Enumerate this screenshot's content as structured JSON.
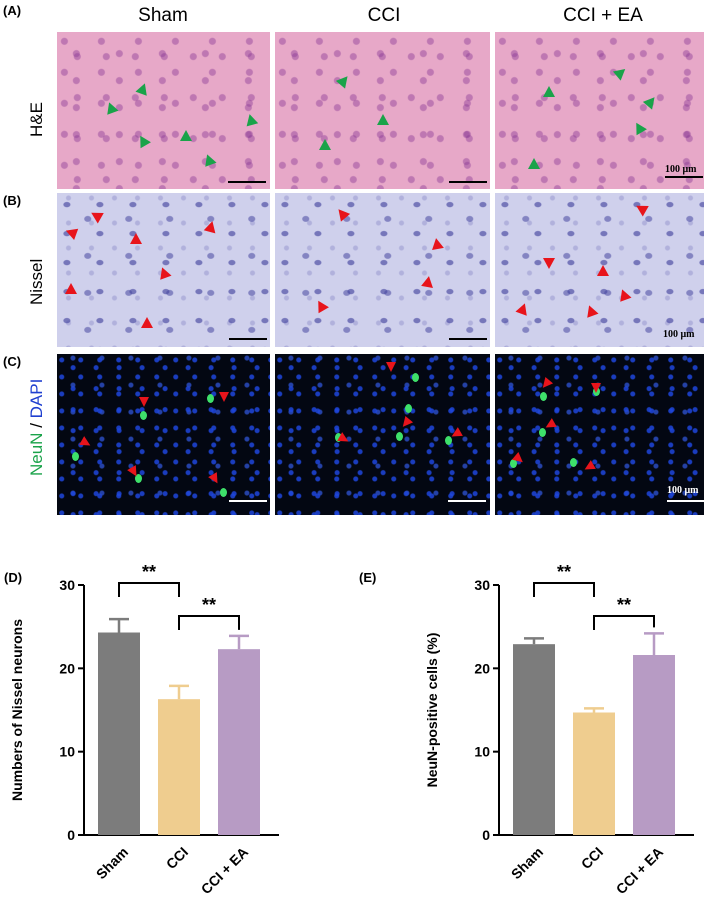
{
  "figure": {
    "columns": [
      "Sham",
      "CCI",
      "CCI + EA"
    ],
    "panels": {
      "A": {
        "letter": "(A)",
        "row_label": "H&E",
        "scale_text": "100 μm"
      },
      "B": {
        "letter": "(B)",
        "row_label": "Nissel",
        "scale_text": "100 μm"
      },
      "C": {
        "letter": "(C)",
        "row_label_part1": "NeuN",
        "row_label_sep": " / ",
        "row_label_part2": "DAPI",
        "scale_text": "100 μm"
      }
    },
    "colors": {
      "green_arrow": "#1aa34a",
      "red_arrow": "#e8141b",
      "neun_green": "#1aa34a",
      "dapi_blue": "#1f3fcf",
      "bar_sham": "#7c7c7c",
      "bar_cci": "#efcd8f",
      "bar_ccea": "#b79bc4"
    }
  },
  "chart_data": [
    {
      "panel_letter": "(D)",
      "type": "bar",
      "categories": [
        "Sham",
        "CCI",
        "CCI + EA"
      ],
      "values": [
        24.3,
        16.3,
        22.3
      ],
      "errors": [
        1.6,
        1.6,
        1.6
      ],
      "ylabel": "Numbers of Nissel neurons",
      "ylim": [
        0,
        30
      ],
      "yticks": [
        0,
        10,
        20,
        30
      ],
      "significance": [
        {
          "from": 0,
          "to": 1,
          "label": "**"
        },
        {
          "from": 1,
          "to": 2,
          "label": "**"
        }
      ]
    },
    {
      "panel_letter": "(E)",
      "type": "bar",
      "categories": [
        "Sham",
        "CCI",
        "CCI + EA"
      ],
      "values": [
        22.9,
        14.7,
        21.6
      ],
      "errors": [
        0.7,
        0.5,
        2.6
      ],
      "ylabel": "NeuN-positive cells (%)",
      "ylim": [
        0,
        30
      ],
      "yticks": [
        0,
        10,
        20,
        30
      ],
      "significance": [
        {
          "from": 0,
          "to": 1,
          "label": "**"
        },
        {
          "from": 1,
          "to": 2,
          "label": "**"
        }
      ]
    }
  ]
}
